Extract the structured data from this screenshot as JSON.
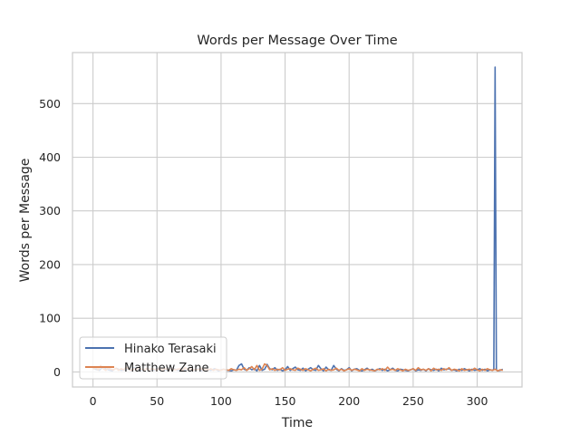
{
  "chart_data": {
    "type": "line",
    "title": "Words per Message Over Time",
    "xlabel": "Time",
    "ylabel": "Words per Message",
    "xlim": [
      -16,
      335
    ],
    "ylim": [
      -28,
      595
    ],
    "xticks": [
      0,
      50,
      100,
      150,
      200,
      250,
      300
    ],
    "yticks": [
      0,
      100,
      200,
      300,
      400,
      500
    ],
    "grid": true,
    "legend_position": "lower-left",
    "series": [
      {
        "name": "Hinako Terasaki",
        "color": "#4c72b0",
        "x": [
          0,
          2,
          5,
          8,
          10,
          12,
          15,
          18,
          20,
          22,
          25,
          28,
          30,
          32,
          35,
          38,
          40,
          42,
          45,
          48,
          50,
          52,
          55,
          58,
          60,
          62,
          65,
          68,
          70,
          72,
          75,
          78,
          80,
          82,
          85,
          88,
          90,
          92,
          95,
          98,
          100,
          102,
          105,
          108,
          110,
          112,
          114,
          116,
          118,
          120,
          122,
          124,
          126,
          128,
          130,
          132,
          134,
          136,
          138,
          140,
          142,
          144,
          146,
          148,
          150,
          152,
          154,
          156,
          158,
          160,
          162,
          164,
          166,
          168,
          170,
          172,
          174,
          176,
          178,
          180,
          182,
          184,
          186,
          188,
          190,
          192,
          194,
          196,
          198,
          200,
          202,
          204,
          206,
          208,
          210,
          212,
          214,
          216,
          218,
          220,
          222,
          224,
          226,
          228,
          230,
          232,
          234,
          236,
          238,
          240,
          242,
          244,
          246,
          248,
          250,
          252,
          254,
          256,
          258,
          260,
          262,
          264,
          266,
          268,
          270,
          272,
          274,
          276,
          278,
          280,
          282,
          284,
          286,
          288,
          290,
          292,
          294,
          296,
          298,
          300,
          302,
          304,
          306,
          308,
          310,
          312,
          313,
          314,
          315,
          316,
          318,
          320
        ],
        "y": [
          8,
          5,
          3,
          10,
          6,
          4,
          2,
          7,
          5,
          3,
          4,
          6,
          2,
          8,
          5,
          3,
          4,
          6,
          5,
          3,
          7,
          4,
          6,
          3,
          5,
          8,
          4,
          2,
          6,
          3,
          5,
          4,
          3,
          6,
          2,
          5,
          4,
          3,
          6,
          2,
          4,
          5,
          3,
          2,
          4,
          3,
          12,
          15,
          5,
          3,
          8,
          4,
          6,
          2,
          12,
          3,
          5,
          14,
          6,
          4,
          8,
          3,
          5,
          2,
          4,
          10,
          3,
          6,
          9,
          4,
          3,
          7,
          2,
          5,
          8,
          4,
          3,
          12,
          6,
          2,
          9,
          4,
          3,
          12,
          5,
          2,
          6,
          3,
          4,
          8,
          2,
          5,
          6,
          3,
          2,
          4,
          7,
          3,
          5,
          2,
          4,
          6,
          3,
          5,
          2,
          4,
          7,
          3,
          2,
          5,
          4,
          3,
          2,
          4,
          6,
          2,
          4,
          3,
          5,
          2,
          6,
          4,
          3,
          5,
          2,
          7,
          4,
          5,
          6,
          3,
          4,
          2,
          5,
          3,
          6,
          4,
          2,
          5,
          3,
          4,
          6,
          3,
          5,
          2,
          4,
          3,
          5,
          568,
          4,
          2,
          3,
          5
        ]
      },
      {
        "name": "Matthew Zane",
        "color": "#dd8452",
        "x": [
          0,
          2,
          4,
          6,
          8,
          10,
          12,
          14,
          16,
          18,
          20,
          22,
          24,
          26,
          28,
          30,
          32,
          34,
          36,
          38,
          40,
          42,
          44,
          46,
          48,
          50,
          52,
          54,
          56,
          58,
          60,
          62,
          64,
          66,
          68,
          70,
          72,
          74,
          76,
          78,
          80,
          82,
          84,
          86,
          88,
          90,
          92,
          94,
          96,
          98,
          100,
          102,
          104,
          106,
          108,
          110,
          112,
          114,
          116,
          118,
          120,
          122,
          124,
          126,
          128,
          130,
          132,
          134,
          136,
          138,
          140,
          142,
          144,
          146,
          148,
          150,
          152,
          154,
          156,
          158,
          160,
          162,
          164,
          166,
          168,
          170,
          172,
          174,
          176,
          178,
          180,
          182,
          184,
          186,
          188,
          190,
          192,
          194,
          196,
          198,
          200,
          202,
          204,
          206,
          208,
          210,
          212,
          214,
          216,
          218,
          220,
          222,
          224,
          226,
          228,
          230,
          232,
          234,
          236,
          238,
          240,
          242,
          244,
          246,
          248,
          250,
          252,
          254,
          256,
          258,
          260,
          262,
          264,
          266,
          268,
          270,
          272,
          274,
          276,
          278,
          280,
          282,
          284,
          286,
          288,
          290,
          292,
          294,
          296,
          298,
          300,
          302,
          304,
          306,
          308,
          310,
          312,
          314,
          316,
          318,
          320
        ],
        "y": [
          5,
          9,
          4,
          12,
          6,
          3,
          8,
          5,
          4,
          7,
          3,
          6,
          4,
          9,
          5,
          3,
          6,
          4,
          8,
          5,
          3,
          7,
          4,
          6,
          5,
          3,
          8,
          4,
          6,
          5,
          3,
          7,
          4,
          5,
          6,
          3,
          8,
          4,
          6,
          3,
          5,
          4,
          7,
          3,
          5,
          4,
          6,
          3,
          5,
          4,
          3,
          5,
          4,
          3,
          6,
          4,
          3,
          5,
          4,
          8,
          3,
          6,
          10,
          4,
          12,
          3,
          5,
          15,
          12,
          4,
          6,
          3,
          5,
          4,
          8,
          3,
          5,
          6,
          4,
          3,
          7,
          5,
          3,
          6,
          4,
          2,
          5,
          7,
          3,
          4,
          6,
          2,
          5,
          3,
          4,
          7,
          3,
          5,
          2,
          4,
          6,
          3,
          5,
          4,
          2,
          6,
          3,
          5,
          4,
          3,
          2,
          5,
          4,
          6,
          3,
          9,
          4,
          5,
          3,
          6,
          4,
          2,
          5,
          3,
          4,
          6,
          3,
          8,
          4,
          5,
          3,
          6,
          2,
          7,
          4,
          5,
          3,
          6,
          4,
          8,
          3,
          5,
          4,
          2,
          6,
          3,
          4,
          5,
          3,
          7,
          4,
          2,
          5,
          3,
          6,
          4,
          3,
          5,
          2,
          4,
          3
        ]
      }
    ]
  }
}
